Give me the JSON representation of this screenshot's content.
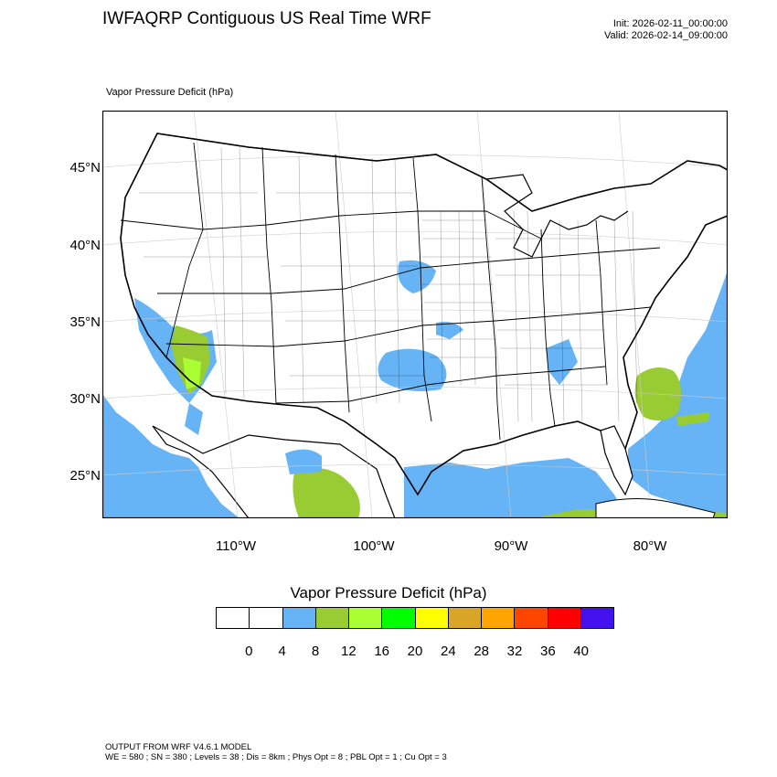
{
  "title": "IWFAQRP Contiguous US Real Time WRF",
  "init": "Init: 2026-02-11_00:00:00",
  "valid": "Valid: 2026-02-14_09:00:00",
  "field_label": "Vapor Pressure Deficit   (hPa)",
  "map": {
    "lat_labels": [
      "45°N",
      "40°N",
      "35°N",
      "30°N",
      "25°N"
    ],
    "lon_labels": [
      "110°W",
      "100°W",
      "90°W",
      "80°W"
    ],
    "land_color": "#ffffff",
    "border_color": "#000000"
  },
  "colorbar": {
    "title": "Vapor Pressure Deficit  (hPa)",
    "colors": [
      "#ffffff",
      "#ffffff",
      "#66b3f5",
      "#99cc33",
      "#aaff33",
      "#00ff00",
      "#ffff00",
      "#d9a526",
      "#ffa500",
      "#ff4500",
      "#ff0000",
      "#4411ee"
    ],
    "labels": [
      "0",
      "4",
      "8",
      "12",
      "16",
      "20",
      "24",
      "28",
      "32",
      "36",
      "40"
    ]
  },
  "footer": {
    "line1": "OUTPUT FROM WRF V4.6.1 MODEL",
    "line2": "WE = 580 ; SN = 380 ; Levels = 38 ; Dis = 8km ; Phys Opt = 8 ; PBL Opt = 1 ; Cu Opt = 3"
  }
}
